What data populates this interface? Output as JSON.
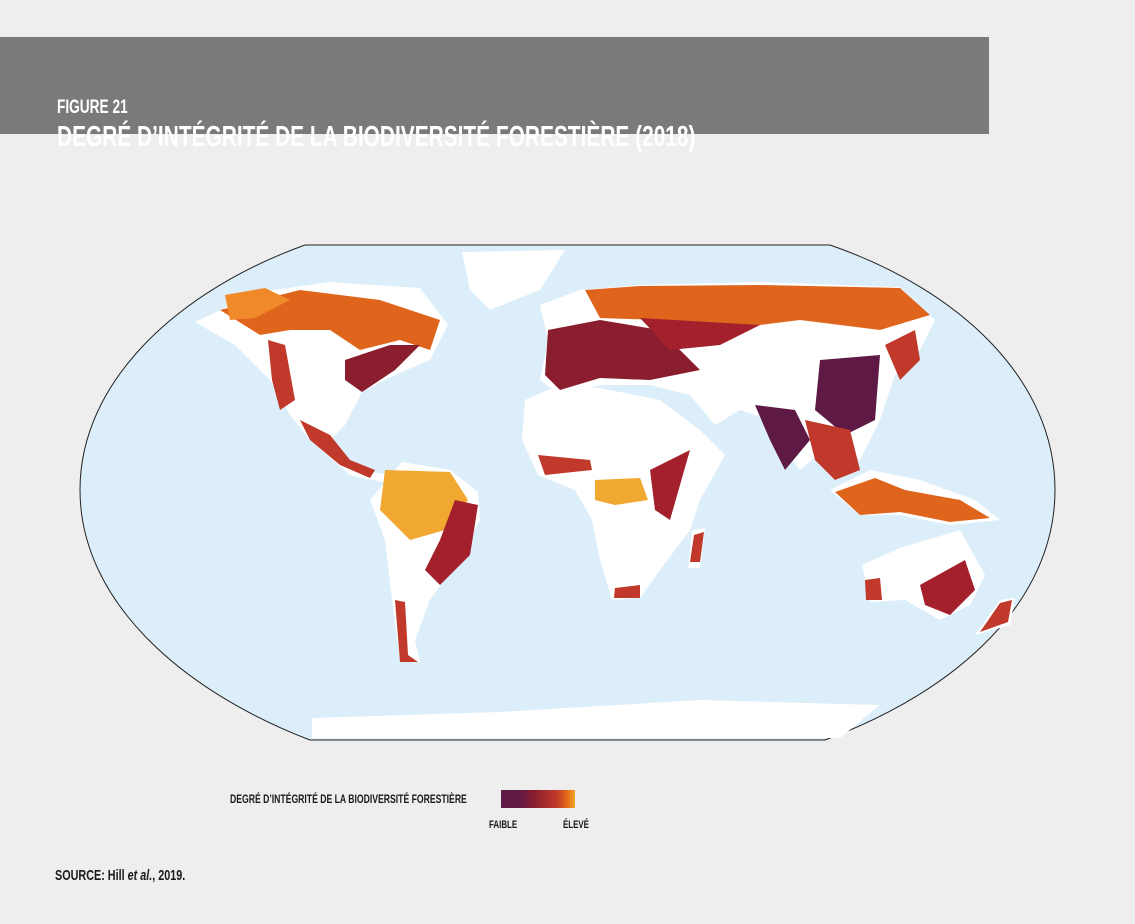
{
  "header": {
    "figure_label": "FIGURE 21",
    "title": "DEGRÉ D’INTÉGRITÉ DE LA BIODIVERSITÉ FORESTIÈRE (2018)"
  },
  "map": {
    "projection": "robinson-like world map",
    "ocean_color": "#dbeefa",
    "land_no_forest_color": "#ffffff",
    "scale_colors": {
      "low": "#5e1a45",
      "mid_low": "#8b1e2e",
      "mid": "#c0392b",
      "mid_high": "#e0651c",
      "high": "#f5a623"
    }
  },
  "legend": {
    "title": "DEGRÉ D’INTÉGRITÉ DE LA BIODIVERSITÉ FORESTIÈRE",
    "low_label": "FAIBLE",
    "high_label": "ÉLEVÉ"
  },
  "source": {
    "prefix": "SOURCE: Hill ",
    "italic": "et al.",
    "suffix": ", 2019."
  }
}
